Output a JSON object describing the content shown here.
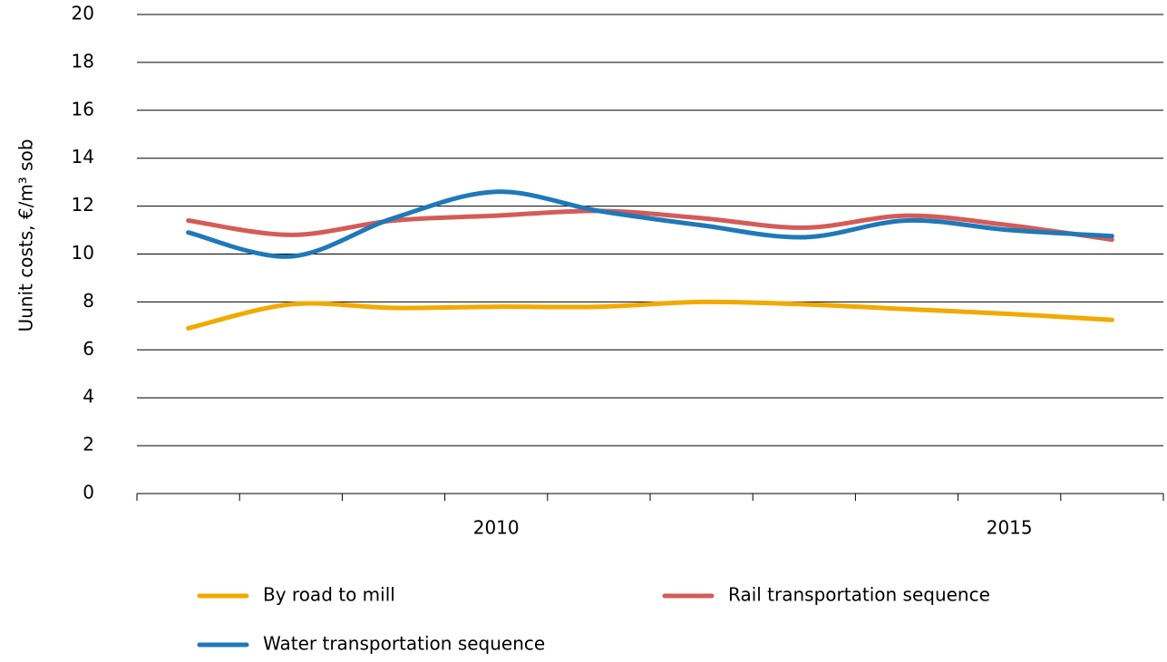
{
  "chart_data": {
    "type": "line",
    "y_label": "Uunit costs, €/m³ sob",
    "categories": [
      null,
      null,
      null,
      "2010",
      null,
      null,
      null,
      null,
      "2015",
      null
    ],
    "series": [
      {
        "name": "By road to mill",
        "color": "#f2a900",
        "values": [
          6.9,
          7.9,
          7.75,
          7.8,
          7.8,
          8.0,
          7.9,
          7.7,
          7.5,
          7.25
        ]
      },
      {
        "name": "Rail transportation sequence",
        "color": "#d45b57",
        "values": [
          11.4,
          10.8,
          11.4,
          11.6,
          11.8,
          11.5,
          11.1,
          11.6,
          11.2,
          10.6
        ]
      },
      {
        "name": "Water transportation sequence",
        "color": "#1f78b9",
        "values": [
          10.9,
          9.9,
          11.5,
          12.6,
          11.8,
          11.2,
          10.7,
          11.4,
          11.0,
          10.75
        ]
      }
    ],
    "ylim": [
      0,
      20
    ],
    "yticks": [
      0,
      2,
      4,
      6,
      8,
      10,
      12,
      14,
      16,
      18,
      20
    ],
    "grid": true
  }
}
